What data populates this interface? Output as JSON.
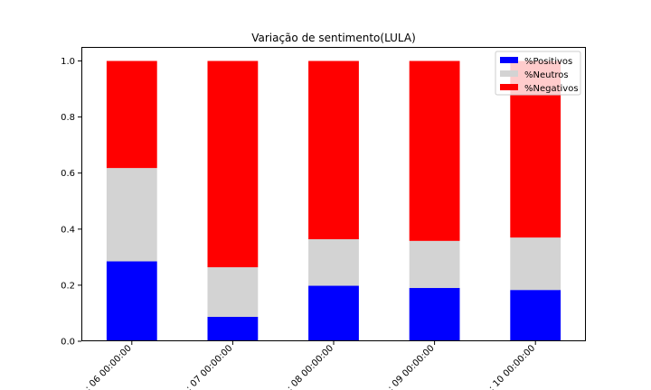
{
  "chart_data": {
    "type": "bar",
    "stacked": true,
    "title": "Variação de sentimento(LULA)",
    "xlabel": "",
    "ylabel": "",
    "ylim": [
      0,
      1.05
    ],
    "yticks": [
      "0.0",
      "0.2",
      "0.4",
      "0.6",
      "0.8",
      "1.0"
    ],
    "categories": [
      ": 06 00:00:00",
      ": 07 00:00:00",
      ": 08 00:00:00",
      ": 09 00:00:00",
      ": 10 00:00:00"
    ],
    "series": [
      {
        "name": "%Positivos",
        "color": "#0000ff",
        "values": [
          0.285,
          0.087,
          0.198,
          0.19,
          0.183
        ]
      },
      {
        "name": "%Neutros",
        "color": "#d3d3d3",
        "values": [
          0.333,
          0.177,
          0.166,
          0.168,
          0.187
        ]
      },
      {
        "name": "%Negativos",
        "color": "#ff0000",
        "values": [
          0.382,
          0.736,
          0.636,
          0.642,
          0.63
        ]
      }
    ],
    "grid": false,
    "legend_position": "top-right"
  }
}
